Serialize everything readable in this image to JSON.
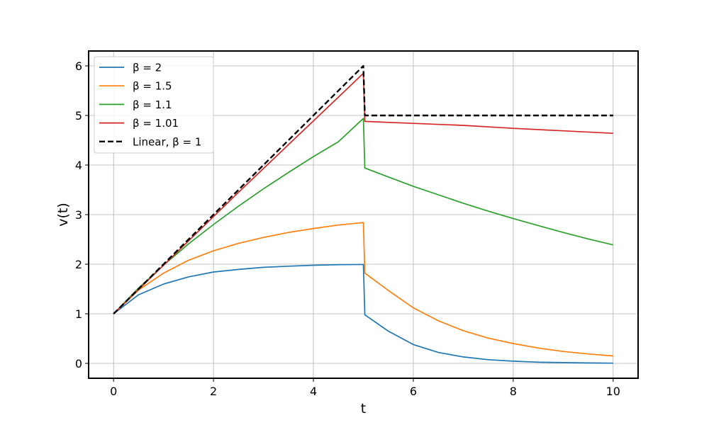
{
  "chart_data": {
    "type": "line",
    "xlabel": "t",
    "ylabel": "v(t)",
    "xlim": [
      -0.5,
      10.5
    ],
    "ylim": [
      -0.3,
      6.3
    ],
    "xticks": [
      0,
      2,
      4,
      6,
      8,
      10
    ],
    "yticks": [
      0,
      1,
      2,
      3,
      4,
      5,
      6
    ],
    "grid": true,
    "legend_position": "top-left",
    "series": [
      {
        "name": "β = 2",
        "color": "#1f77b4",
        "dash": "solid",
        "points": [
          [
            0,
            1
          ],
          [
            0.5,
            1.385
          ],
          [
            1,
            1.6
          ],
          [
            1.5,
            1.745
          ],
          [
            2,
            1.843
          ],
          [
            2.5,
            1.895
          ],
          [
            3,
            1.937
          ],
          [
            3.5,
            1.96
          ],
          [
            4,
            1.978
          ],
          [
            4.5,
            1.99
          ],
          [
            5,
            1.995
          ],
          [
            5.03,
            0.98
          ],
          [
            5.5,
            0.65
          ],
          [
            6,
            0.38
          ],
          [
            6.5,
            0.22
          ],
          [
            7,
            0.13
          ],
          [
            7.5,
            0.075
          ],
          [
            8,
            0.045
          ],
          [
            8.5,
            0.025
          ],
          [
            9,
            0.015
          ],
          [
            9.5,
            0.008
          ],
          [
            10,
            0.004
          ]
        ]
      },
      {
        "name": "β = 1.5",
        "color": "#ff7f0e",
        "dash": "solid",
        "points": [
          [
            0,
            1
          ],
          [
            0.5,
            1.48
          ],
          [
            1,
            1.82
          ],
          [
            1.5,
            2.08
          ],
          [
            2,
            2.27
          ],
          [
            2.5,
            2.42
          ],
          [
            3,
            2.54
          ],
          [
            3.5,
            2.64
          ],
          [
            4,
            2.72
          ],
          [
            4.5,
            2.79
          ],
          [
            5,
            2.84
          ],
          [
            5.03,
            1.82
          ],
          [
            5.5,
            1.47
          ],
          [
            6,
            1.12
          ],
          [
            6.5,
            0.86
          ],
          [
            7,
            0.66
          ],
          [
            7.5,
            0.51
          ],
          [
            8,
            0.4
          ],
          [
            8.5,
            0.31
          ],
          [
            9,
            0.24
          ],
          [
            9.5,
            0.19
          ],
          [
            10,
            0.15
          ]
        ]
      },
      {
        "name": "β = 1.1",
        "color": "#2ca02c",
        "dash": "solid",
        "points": [
          [
            0,
            1
          ],
          [
            0.5,
            1.52
          ],
          [
            1,
            1.98
          ],
          [
            1.5,
            2.41
          ],
          [
            2,
            2.8
          ],
          [
            2.5,
            3.17
          ],
          [
            3,
            3.52
          ],
          [
            3.5,
            3.85
          ],
          [
            4,
            4.17
          ],
          [
            4.5,
            4.47
          ],
          [
            5,
            4.94
          ],
          [
            5.03,
            3.94
          ],
          [
            5.5,
            3.76
          ],
          [
            6,
            3.57
          ],
          [
            6.5,
            3.4
          ],
          [
            7,
            3.23
          ],
          [
            7.5,
            3.07
          ],
          [
            8,
            2.92
          ],
          [
            8.5,
            2.78
          ],
          [
            9,
            2.64
          ],
          [
            9.5,
            2.51
          ],
          [
            10,
            2.39
          ]
        ]
      },
      {
        "name": "β = 1.01",
        "color": "#d62728",
        "dash": "solid",
        "points": [
          [
            0,
            1
          ],
          [
            0.5,
            1.49
          ],
          [
            1,
            1.98
          ],
          [
            1.5,
            2.47
          ],
          [
            2,
            2.96
          ],
          [
            2.5,
            3.45
          ],
          [
            3,
            3.93
          ],
          [
            3.5,
            4.41
          ],
          [
            4,
            4.89
          ],
          [
            4.5,
            5.37
          ],
          [
            5,
            5.85
          ],
          [
            5.03,
            4.88
          ],
          [
            6,
            4.84
          ],
          [
            7,
            4.8
          ],
          [
            8,
            4.74
          ],
          [
            9,
            4.69
          ],
          [
            10,
            4.64
          ]
        ]
      },
      {
        "name": "Linear, β = 1",
        "color": "#000000",
        "dash": "dashed",
        "points": [
          [
            0,
            1
          ],
          [
            5,
            6
          ],
          [
            5.03,
            5.0
          ],
          [
            10,
            5.0
          ]
        ]
      }
    ]
  }
}
